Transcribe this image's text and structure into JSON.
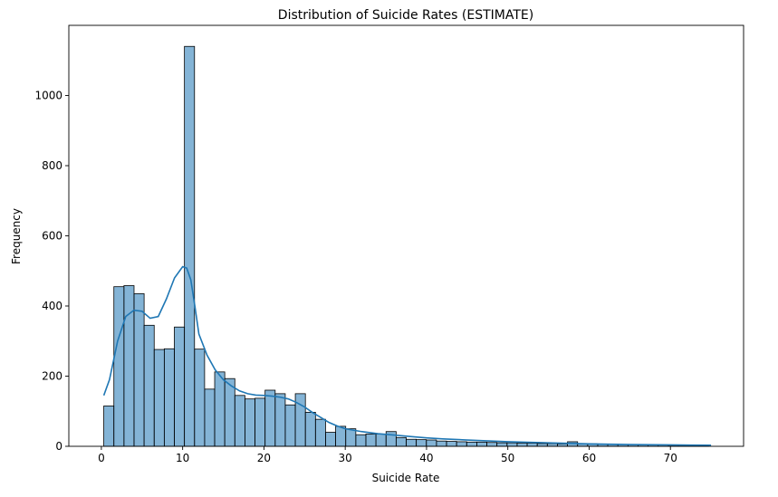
{
  "chart_data": {
    "type": "bar",
    "title": "Distribution of Suicide Rates (ESTIMATE)",
    "xlabel": "Suicide Rate",
    "ylabel": "Frequency",
    "xlim": [
      -4,
      79
    ],
    "ylim": [
      0,
      1200
    ],
    "xticks": [
      0,
      10,
      20,
      30,
      40,
      50,
      60,
      70
    ],
    "yticks": [
      0,
      200,
      400,
      600,
      800,
      1000
    ],
    "grid": false,
    "bar_color": "#1f77b4",
    "bar_opacity": 0.55,
    "edge_color": "#000000",
    "line_color": "#1f77b4",
    "bins": {
      "start": 0.3,
      "width": 1.24,
      "counts": [
        115,
        455,
        458,
        435,
        345,
        276,
        278,
        340,
        1140,
        277,
        163,
        212,
        193,
        145,
        135,
        137,
        160,
        150,
        118,
        150,
        97,
        77,
        40,
        57,
        50,
        33,
        35,
        35,
        42,
        25,
        20,
        19,
        18,
        15,
        14,
        13,
        12,
        12,
        11,
        10,
        10,
        9,
        9,
        8,
        8,
        7,
        13,
        7,
        7,
        6,
        6,
        5,
        5,
        4,
        4,
        4,
        3,
        3,
        3,
        2
      ]
    },
    "kde": {
      "x": [
        0.3,
        1,
        2,
        3,
        4,
        5,
        6,
        7,
        8,
        9,
        10,
        10.5,
        11,
        11.5,
        12,
        13,
        14,
        15,
        16,
        17,
        18,
        19,
        20,
        21,
        22,
        23,
        24,
        25,
        26,
        27,
        28,
        29,
        30,
        32,
        34,
        36,
        38,
        40,
        42,
        45,
        48,
        50,
        55,
        60,
        65,
        70,
        75
      ],
      "y": [
        145,
        190,
        300,
        370,
        388,
        385,
        365,
        370,
        420,
        480,
        512,
        508,
        475,
        400,
        320,
        260,
        218,
        190,
        172,
        158,
        150,
        146,
        145,
        143,
        140,
        135,
        125,
        112,
        96,
        82,
        68,
        58,
        50,
        42,
        36,
        32,
        28,
        24,
        21,
        18,
        15,
        13,
        10,
        7,
        5,
        4,
        3
      ]
    }
  }
}
